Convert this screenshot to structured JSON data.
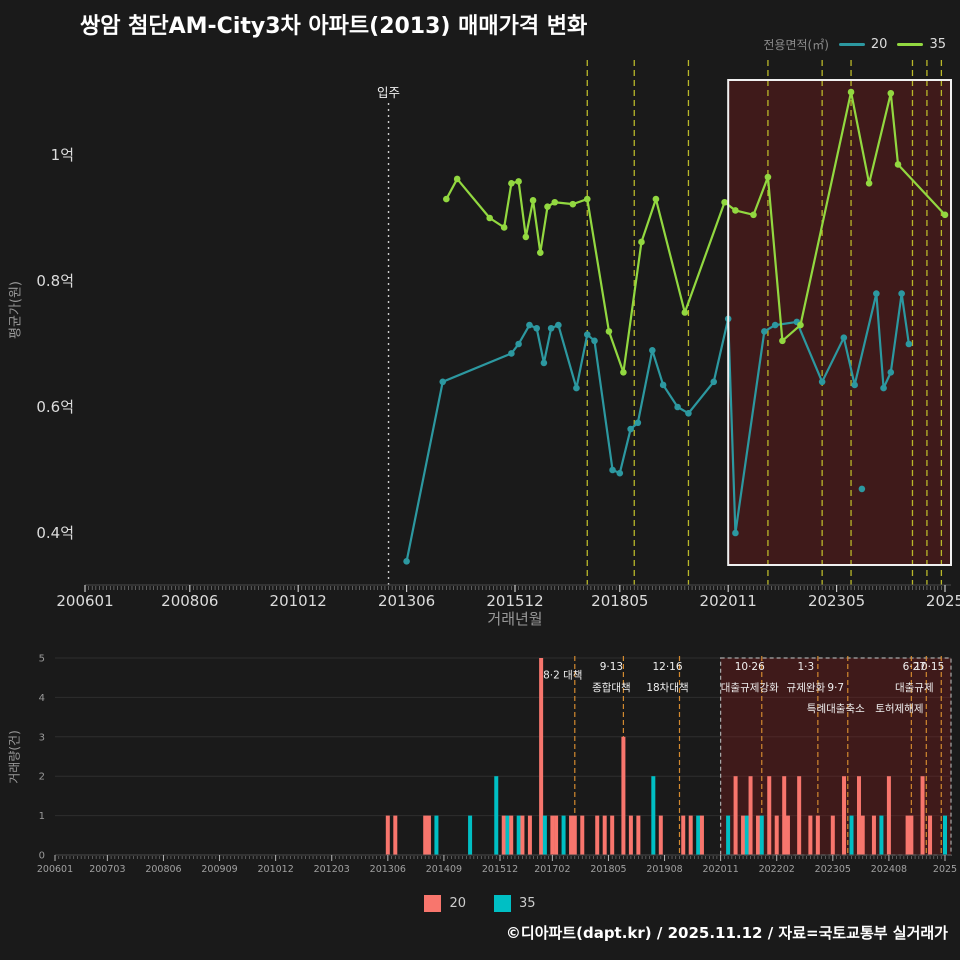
{
  "title": "쌍암 첨단AM-City3차 아파트(2013) 매매가격 변화",
  "legend_top": {
    "label": "전용면적(㎡)",
    "series": [
      {
        "name": "20"
      },
      {
        "name": "35"
      }
    ]
  },
  "legend_bottom": {
    "items": [
      {
        "name": "20"
      },
      {
        "name": "35"
      }
    ]
  },
  "footer": "©디아파트(dapt.kr) / 2025.11.12 / 자료=국토교통부 실거래가",
  "chart_data": [
    {
      "id": "price_trend",
      "type": "line",
      "xlabel": "거래년월",
      "ylabel": "평균가(원)",
      "unit": "억",
      "x_domain": [
        "2006-01",
        "2025-11"
      ],
      "y_domain": [
        0.32,
        1.15
      ],
      "grid": false,
      "x_ticks": [
        {
          "ym": "2006-01",
          "label": "200601"
        },
        {
          "ym": "2008-06",
          "label": "200806"
        },
        {
          "ym": "2010-12",
          "label": "201012"
        },
        {
          "ym": "2013-06",
          "label": "201306"
        },
        {
          "ym": "2015-12",
          "label": "201512"
        },
        {
          "ym": "2018-05",
          "label": "201805"
        },
        {
          "ym": "2020-11",
          "label": "202011"
        },
        {
          "ym": "2023-05",
          "label": "202305"
        },
        {
          "ym": "2025-11",
          "label": "2025"
        }
      ],
      "y_ticks": [
        {
          "v": 0.4,
          "label": "0.4억"
        },
        {
          "v": 0.6,
          "label": "0.6억"
        },
        {
          "v": 0.8,
          "label": "0.8억"
        },
        {
          "v": 1.0,
          "label": "1억"
        }
      ],
      "movein": {
        "ym": "2013-01",
        "label": "입주",
        "color": "#cccccc"
      },
      "events": [
        "2017-08",
        "2018-09",
        "2019-12",
        "2021-10",
        "2023-01",
        "2023-09",
        "2025-02",
        "2025-06",
        "2025-10"
      ],
      "event_line_color": "#b9b82a",
      "highlight": {
        "from": "2020-11",
        "to": "2025-11",
        "fill": "rgba(139,26,26,0.33)",
        "border": "#f0f0f0"
      },
      "series": [
        {
          "name": "20",
          "color": "#2c98a0",
          "points": [
            [
              "2013-06",
              0.355
            ],
            [
              "2014-04",
              0.64
            ],
            [
              "2015-11",
              0.685
            ],
            [
              "2016-01",
              0.7
            ],
            [
              "2016-04",
              0.73
            ],
            [
              "2016-06",
              0.725
            ],
            [
              "2016-08",
              0.67
            ],
            [
              "2016-10",
              0.725
            ],
            [
              "2016-12",
              0.73
            ],
            [
              "2017-05",
              0.63
            ],
            [
              "2017-08",
              0.715
            ],
            [
              "2017-10",
              0.705
            ],
            [
              "2018-03",
              0.5
            ],
            [
              "2018-05",
              0.495
            ],
            [
              "2018-08",
              0.565
            ],
            [
              "2018-10",
              0.575
            ],
            [
              "2019-02",
              0.69
            ],
            [
              "2019-05",
              0.635
            ],
            [
              "2019-09",
              0.6
            ],
            [
              "2019-12",
              0.59
            ],
            [
              "2020-07",
              0.64
            ],
            [
              "2020-11",
              0.74
            ],
            [
              "2021-01",
              0.4
            ],
            [
              "2021-09",
              0.72
            ],
            [
              "2021-12",
              0.73
            ],
            [
              "2022-06",
              0.735
            ],
            [
              "2023-01",
              0.64
            ],
            [
              "2023-07",
              0.71
            ],
            [
              "2023-10",
              0.635
            ],
            [
              "2024-04",
              0.78
            ],
            [
              "2024-06",
              0.63
            ],
            [
              "2024-08",
              0.655
            ],
            [
              "2024-11",
              0.78
            ],
            [
              "2025-01",
              0.7
            ]
          ],
          "extra_points": [
            [
              "2023-12",
              0.47
            ]
          ]
        },
        {
          "name": "35",
          "color": "#92d840",
          "points": [
            [
              "2014-05",
              0.93
            ],
            [
              "2014-08",
              0.962
            ],
            [
              "2015-05",
              0.9
            ],
            [
              "2015-09",
              0.885
            ],
            [
              "2015-11",
              0.955
            ],
            [
              "2016-01",
              0.958
            ],
            [
              "2016-03",
              0.87
            ],
            [
              "2016-05",
              0.928
            ],
            [
              "2016-07",
              0.845
            ],
            [
              "2016-09",
              0.918
            ],
            [
              "2016-11",
              0.925
            ],
            [
              "2017-04",
              0.922
            ],
            [
              "2017-08",
              0.93
            ],
            [
              "2018-02",
              0.72
            ],
            [
              "2018-06",
              0.655
            ],
            [
              "2018-11",
              0.862
            ],
            [
              "2019-03",
              0.93
            ],
            [
              "2019-11",
              0.75
            ],
            [
              "2020-10",
              0.925
            ],
            [
              "2021-01",
              0.912
            ],
            [
              "2021-06",
              0.905
            ],
            [
              "2021-10",
              0.965
            ],
            [
              "2022-02",
              0.705
            ],
            [
              "2022-07",
              0.73
            ],
            [
              "2023-09",
              1.1
            ],
            [
              "2024-02",
              0.955
            ],
            [
              "2024-08",
              1.098
            ],
            [
              "2024-10",
              0.985
            ],
            [
              "2025-11",
              0.905
            ]
          ],
          "extra_points": []
        }
      ]
    },
    {
      "id": "volume",
      "type": "bar",
      "ylabel": "거래량(건)",
      "x_domain": [
        "2006-01",
        "2025-11"
      ],
      "ylim": [
        0,
        5
      ],
      "grid": true,
      "y_ticks": [
        0,
        1,
        2,
        3,
        4,
        5
      ],
      "x_ticks": [
        {
          "ym": "2006-01",
          "label": "200601"
        },
        {
          "ym": "2007-03",
          "label": "200703"
        },
        {
          "ym": "2008-06",
          "label": "200806"
        },
        {
          "ym": "2009-09",
          "label": "200909"
        },
        {
          "ym": "2010-12",
          "label": "201012"
        },
        {
          "ym": "2012-03",
          "label": "201203"
        },
        {
          "ym": "2013-06",
          "label": "201306"
        },
        {
          "ym": "2014-09",
          "label": "201409"
        },
        {
          "ym": "2015-12",
          "label": "201512"
        },
        {
          "ym": "2017-02",
          "label": "201702"
        },
        {
          "ym": "2018-05",
          "label": "201805"
        },
        {
          "ym": "2019-08",
          "label": "201908"
        },
        {
          "ym": "2020-11",
          "label": "202011"
        },
        {
          "ym": "2022-02",
          "label": "202202"
        },
        {
          "ym": "2023-05",
          "label": "202305"
        },
        {
          "ym": "2024-08",
          "label": "202408"
        },
        {
          "ym": "2025-11",
          "label": "2025"
        }
      ],
      "series_colors": {
        "20": "#f8766d",
        "35": "#00bfc4"
      },
      "event_line_color": "#d2892f",
      "annotation_color": "#efefef",
      "highlight": {
        "from": "2020-11",
        "to": "2025-11",
        "fill": "rgba(139,26,26,0.33)",
        "border": "#aaaaaa"
      },
      "events": [
        {
          "ym": "2017-08",
          "labels": [
            [
              "8·2 대책",
              0.4
            ]
          ]
        },
        {
          "ym": "2018-09",
          "labels": [
            [
              "9·13",
              0
            ],
            [
              "종합대책",
              1
            ]
          ]
        },
        {
          "ym": "2019-12",
          "labels": [
            [
              "12·16",
              0
            ],
            [
              "18차대책",
              1
            ]
          ]
        },
        {
          "ym": "2021-10",
          "labels": [
            [
              "10·26",
              0
            ],
            [
              "대출규제강화",
              1
            ]
          ]
        },
        {
          "ym": "2023-01",
          "labels": [
            [
              "1·3",
              0
            ],
            [
              "규제완화",
              1
            ]
          ]
        },
        {
          "ym": "2023-09",
          "labels": [
            [
              "9·7",
              1
            ],
            [
              "특례대출축소",
              2
            ]
          ]
        },
        {
          "ym": "2025-02",
          "labels": [
            [
              "토허제해제",
              2
            ]
          ]
        },
        {
          "ym": "2025-06",
          "labels": [
            [
              "6·27",
              0
            ],
            [
              "대출규제",
              1
            ]
          ]
        },
        {
          "ym": "2025-10",
          "labels": [
            [
              "10·15",
              0
            ]
          ]
        }
      ],
      "bars": [
        [
          "2013-06",
          "20",
          1
        ],
        [
          "2013-08",
          "20",
          1
        ],
        [
          "2014-04",
          "20",
          1
        ],
        [
          "2014-05",
          "20",
          1
        ],
        [
          "2014-07",
          "35",
          1
        ],
        [
          "2015-04",
          "35",
          1
        ],
        [
          "2015-11",
          "35",
          2
        ],
        [
          "2016-01",
          "20",
          1
        ],
        [
          "2016-02",
          "35",
          1
        ],
        [
          "2016-03",
          "20",
          1
        ],
        [
          "2016-05",
          "35",
          1
        ],
        [
          "2016-06",
          "20",
          1
        ],
        [
          "2016-08",
          "20",
          1
        ],
        [
          "2016-11",
          "20",
          5
        ],
        [
          "2016-12",
          "35",
          1
        ],
        [
          "2017-02",
          "20",
          1
        ],
        [
          "2017-03",
          "20",
          1
        ],
        [
          "2017-05",
          "35",
          1
        ],
        [
          "2017-07",
          "20",
          1
        ],
        [
          "2017-08",
          "20",
          1
        ],
        [
          "2017-10",
          "20",
          1
        ],
        [
          "2018-02",
          "20",
          1
        ],
        [
          "2018-04",
          "20",
          1
        ],
        [
          "2018-06",
          "20",
          1
        ],
        [
          "2018-09",
          "20",
          3
        ],
        [
          "2018-11",
          "20",
          1
        ],
        [
          "2019-01",
          "20",
          1
        ],
        [
          "2019-05",
          "35",
          2
        ],
        [
          "2019-07",
          "20",
          1
        ],
        [
          "2020-01",
          "20",
          1
        ],
        [
          "2020-03",
          "20",
          1
        ],
        [
          "2020-05",
          "35",
          1
        ],
        [
          "2020-06",
          "20",
          1
        ],
        [
          "2021-01",
          "35",
          1
        ],
        [
          "2021-03",
          "20",
          2
        ],
        [
          "2021-05",
          "20",
          1
        ],
        [
          "2021-06",
          "35",
          1
        ],
        [
          "2021-07",
          "20",
          2
        ],
        [
          "2021-09",
          "20",
          1
        ],
        [
          "2021-10",
          "35",
          1
        ],
        [
          "2021-12",
          "20",
          2
        ],
        [
          "2022-02",
          "20",
          1
        ],
        [
          "2022-04",
          "20",
          2
        ],
        [
          "2022-05",
          "20",
          1
        ],
        [
          "2022-08",
          "20",
          2
        ],
        [
          "2022-11",
          "20",
          1
        ],
        [
          "2023-01",
          "20",
          1
        ],
        [
          "2023-05",
          "20",
          1
        ],
        [
          "2023-08",
          "20",
          2
        ],
        [
          "2023-10",
          "35",
          1
        ],
        [
          "2023-12",
          "20",
          2
        ],
        [
          "2024-01",
          "20",
          1
        ],
        [
          "2024-04",
          "20",
          1
        ],
        [
          "2024-06",
          "35",
          1
        ],
        [
          "2024-08",
          "20",
          2
        ],
        [
          "2025-01",
          "20",
          1
        ],
        [
          "2025-02",
          "20",
          1
        ],
        [
          "2025-05",
          "20",
          2
        ],
        [
          "2025-07",
          "20",
          1
        ],
        [
          "2025-11",
          "35",
          1
        ]
      ]
    }
  ]
}
